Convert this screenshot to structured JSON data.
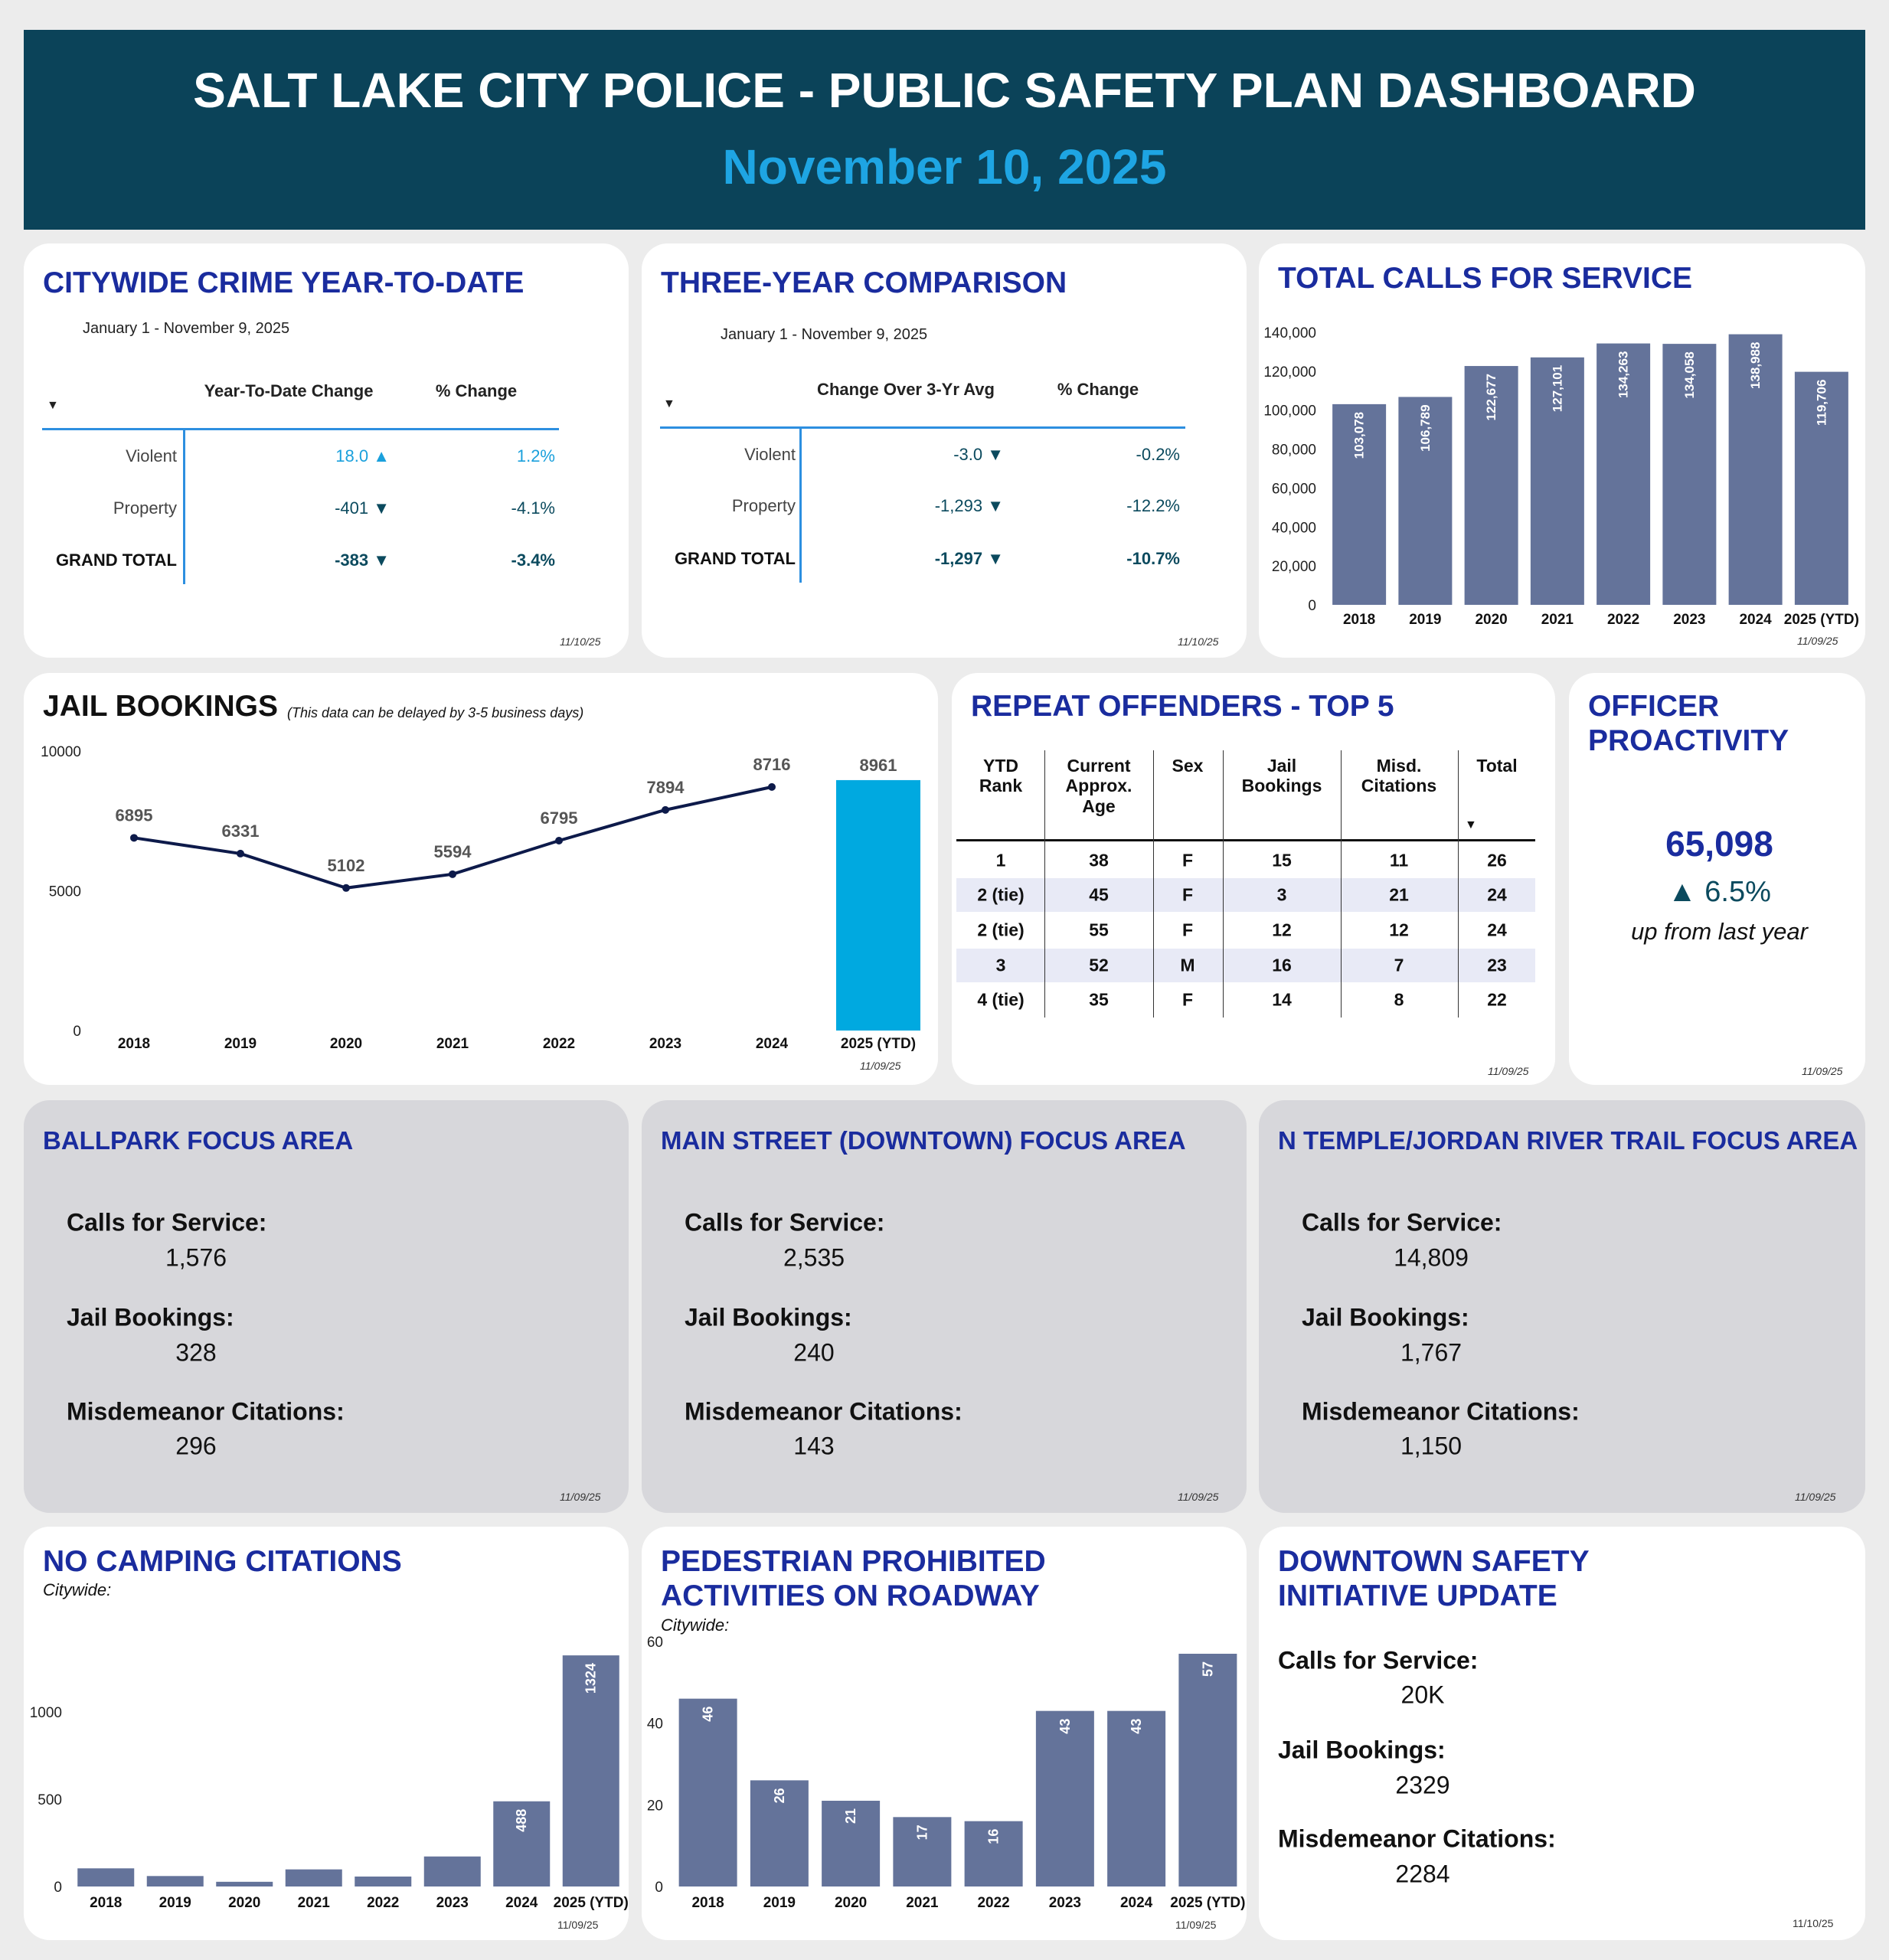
{
  "header": {
    "title": "SALT LAKE CITY POLICE - PUBLIC SAFETY PLAN DASHBOARD",
    "date": "November 10, 2025"
  },
  "colors": {
    "header_bg": "#0b4359",
    "title_blue": "#1a2c9e",
    "bar": "#64739a",
    "jail_ytd_bar": "#00a9e0",
    "up": "#1aa0dc",
    "down": "#0b4a5e"
  },
  "crime_ytd": {
    "title": "CITYWIDE CRIME YEAR-TO-DATE",
    "range": "January 1 - November 9, 2025",
    "col1": "Year-To-Date Change",
    "col2": "% Change",
    "rows": [
      {
        "label": "Violent",
        "change": "18.0 ▲",
        "pct": "1.2%"
      },
      {
        "label": "Property",
        "change": "-401 ▼",
        "pct": "-4.1%"
      },
      {
        "label": "GRAND TOTAL",
        "change": "-383 ▼",
        "pct": "-3.4%"
      }
    ],
    "updated": "11/10/25"
  },
  "three_year": {
    "title": "THREE-YEAR COMPARISON",
    "range": "January 1 - November 9, 2025",
    "col1": "Change Over 3-Yr Avg",
    "col2": "% Change",
    "rows": [
      {
        "label": "Violent",
        "change": "-3.0 ▼",
        "pct": "-0.2%"
      },
      {
        "label": "Property",
        "change": "-1,293 ▼",
        "pct": "-12.2%"
      },
      {
        "label": "GRAND TOTAL",
        "change": "-1,297 ▼",
        "pct": "-10.7%"
      }
    ],
    "updated": "11/10/25"
  },
  "repeat_offenders": {
    "title": "REPEAT OFFENDERS - TOP 5",
    "columns": [
      "YTD\nRank",
      "Current\nApprox.\nAge",
      "Sex",
      "Jail\nBookings",
      "Misd.\nCitations",
      "Total"
    ],
    "rows": [
      [
        "1",
        "38",
        "F",
        "15",
        "11",
        "26"
      ],
      [
        "2 (tie)",
        "45",
        "F",
        "3",
        "21",
        "24"
      ],
      [
        "2 (tie)",
        "55",
        "F",
        "12",
        "12",
        "24"
      ],
      [
        "3",
        "52",
        "M",
        "16",
        "7",
        "23"
      ],
      [
        "4 (tie)",
        "35",
        "F",
        "14",
        "8",
        "22"
      ]
    ],
    "updated": "11/09/25"
  },
  "officer": {
    "title": "OFFICER PROACTIVITY",
    "value": "65,098",
    "change": "▲ 6.5%",
    "note": "up from last year",
    "updated": "11/09/25"
  },
  "focus_areas": [
    {
      "title": "BALLPARK FOCUS AREA",
      "calls_label": "Calls for Service:",
      "calls": "1,576",
      "jail_label": "Jail Bookings:",
      "jail": "328",
      "misd_label": "Misdemeanor Citations:",
      "misd": "296",
      "updated": "11/09/25"
    },
    {
      "title": "MAIN STREET (DOWNTOWN) FOCUS AREA",
      "calls_label": "Calls for Service:",
      "calls": "2,535",
      "jail_label": "Jail Bookings:",
      "jail": "240",
      "misd_label": "Misdemeanor Citations:",
      "misd": "143",
      "updated": "11/09/25"
    },
    {
      "title": "N TEMPLE/JORDAN RIVER TRAIL FOCUS AREA",
      "calls_label": "Calls for Service:",
      "calls": "14,809",
      "jail_label": "Jail Bookings:",
      "jail": "1,767",
      "misd_label": "Misdemeanor Citations:",
      "misd": "1,150",
      "updated": "11/09/25"
    }
  ],
  "downtown": {
    "title": "DOWNTOWN SAFETY INITIATIVE UPDATE",
    "calls_label": "Calls for Service:",
    "calls": "20K",
    "jail_label": "Jail Bookings:",
    "jail": "2329",
    "misd_label": "Misdemeanor Citations:",
    "misd": "2284",
    "updated": "11/10/25"
  },
  "jail_bookings": {
    "title": "JAIL BOOKINGS",
    "note": "(This data can be delayed by 3-5 business days)",
    "updated": "11/09/25"
  },
  "calls": {
    "title": "TOTAL CALLS FOR SERVICE",
    "updated": "11/09/25"
  },
  "camping": {
    "title": "NO CAMPING CITATIONS",
    "subtitle": "Citywide:",
    "updated": "11/09/25"
  },
  "pedestrian": {
    "title_line1": "PEDESTRIAN PROHIBITED",
    "title_line2": "ACTIVITIES ON ROADWAY",
    "subtitle": "Citywide:",
    "updated": "11/09/25"
  },
  "chart_data": [
    {
      "id": "calls",
      "type": "bar",
      "categories": [
        "2018",
        "2019",
        "2020",
        "2021",
        "2022",
        "2023",
        "2024",
        "2025 (YTD)"
      ],
      "values": [
        103078,
        106789,
        122677,
        127101,
        134263,
        134058,
        138988,
        119706
      ],
      "labels": [
        "103,078",
        "106,789",
        "122,677",
        "127,101",
        "134,263",
        "134,058",
        "138,988",
        "119,706"
      ],
      "ylim": [
        0,
        140000
      ],
      "yticks": [
        0,
        20000,
        40000,
        60000,
        80000,
        100000,
        120000,
        140000
      ],
      "ytick_labels": [
        "0",
        "20,000",
        "40,000",
        "60,000",
        "80,000",
        "100,000",
        "120,000",
        "140,000"
      ],
      "grid": false
    },
    {
      "id": "jail",
      "type": "line",
      "categories": [
        "2018",
        "2019",
        "2020",
        "2021",
        "2022",
        "2023",
        "2024",
        "2025 (YTD)"
      ],
      "values": [
        6895,
        6331,
        5102,
        5594,
        6795,
        7894,
        8716,
        8961
      ],
      "ytd_shown_as": "bar",
      "ylim": [
        0,
        10000
      ],
      "yticks": [
        0,
        5000,
        10000
      ],
      "grid": false
    },
    {
      "id": "camping",
      "type": "bar",
      "categories": [
        "2018",
        "2019",
        "2020",
        "2021",
        "2022",
        "2023",
        "2024",
        "2025 (YTD)"
      ],
      "values": [
        104,
        60,
        27,
        98,
        57,
        172,
        488,
        1324
      ],
      "labels": [
        "",
        "",
        "",
        "",
        "",
        "",
        "488",
        "1324"
      ],
      "ylim": [
        0,
        1400
      ],
      "yticks": [
        0,
        500,
        1000
      ],
      "grid": false
    },
    {
      "id": "pedestrian",
      "type": "bar",
      "categories": [
        "2018",
        "2019",
        "2020",
        "2021",
        "2022",
        "2023",
        "2024",
        "2025 (YTD)"
      ],
      "values": [
        46,
        26,
        21,
        17,
        16,
        43,
        43,
        57
      ],
      "labels": [
        "46",
        "26",
        "21",
        "17",
        "16",
        "43",
        "43",
        "57"
      ],
      "ylim": [
        0,
        60
      ],
      "yticks": [
        0,
        20,
        40,
        60
      ],
      "grid": false
    }
  ]
}
